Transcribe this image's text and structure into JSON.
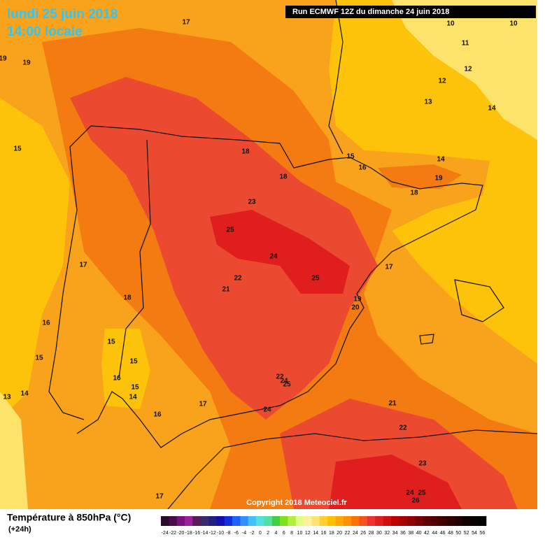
{
  "header": {
    "title": "lundi 25 juin 2018",
    "subtitle": "14:00 locale",
    "run": "Run ECMWF 12Z du dimanche 24 juin 2018"
  },
  "map": {
    "contour_labels": [
      "17",
      "19",
      "19",
      "10",
      "10",
      "11",
      "12",
      "12",
      "13",
      "14",
      "15",
      "18",
      "15",
      "16",
      "14",
      "18",
      "19",
      "18",
      "23",
      "25",
      "24",
      "17",
      "17",
      "22",
      "25",
      "21",
      "18",
      "19",
      "20",
      "16",
      "15",
      "15",
      "15",
      "16",
      "22",
      "24",
      "25",
      "15",
      "14",
      "13",
      "14",
      "17",
      "24",
      "16",
      "21",
      "22",
      "23",
      "24",
      "25",
      "26",
      "17"
    ]
  },
  "copyright": "Copyright 2018 Meteociel.fr",
  "legend": {
    "title": "Température à 850hPa (°C)",
    "lead": "(+24h)",
    "ticks": [
      "-24",
      "-22",
      "-20",
      "-18",
      "-16",
      "-14",
      "-12",
      "-10",
      "-8",
      "-6",
      "-4",
      "-2",
      "0",
      "2",
      "4",
      "6",
      "8",
      "10",
      "12",
      "14",
      "16",
      "18",
      "20",
      "22",
      "24",
      "26",
      "28",
      "30",
      "32",
      "34",
      "36",
      "38",
      "40",
      "42",
      "44",
      "46",
      "48",
      "50",
      "52",
      "54",
      "56"
    ],
    "colors": [
      "#2a0a2a",
      "#4a0a4a",
      "#7a107a",
      "#9a209a",
      "#5a1a5a",
      "#3a2a6a",
      "#202080",
      "#1010b0",
      "#1030e0",
      "#2060ff",
      "#3090ff",
      "#40c0ff",
      "#50e0e0",
      "#50e0a0",
      "#40d040",
      "#80e020",
      "#b0f040",
      "#e0ff80",
      "#fff0a0",
      "#ffe070",
      "#ffd030",
      "#ffc000",
      "#ffa800",
      "#ff9000",
      "#ff7000",
      "#f85020",
      "#f03030",
      "#e02020",
      "#d01010",
      "#c00000",
      "#a80000",
      "#900000",
      "#780000",
      "#600000",
      "#500000",
      "#400000",
      "#300000",
      "#200000",
      "#100000",
      "#080000",
      "#000000"
    ]
  }
}
